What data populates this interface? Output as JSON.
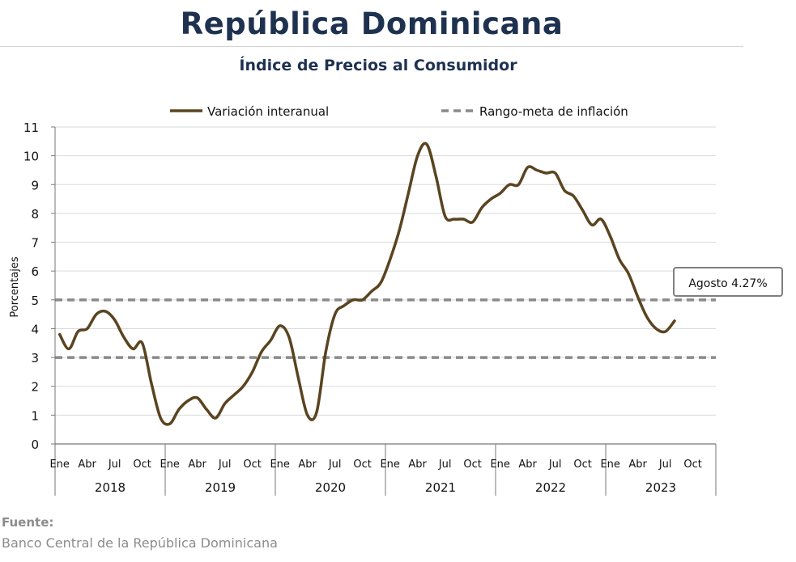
{
  "header": {
    "title": "República Dominicana",
    "subtitle": "Índice de Precios al Consumidor"
  },
  "footer": {
    "label": "Fuente:",
    "source": "Banco Central de la República Dominicana"
  },
  "colors": {
    "title": "#1e3250",
    "series_line": "#5a4420",
    "target_band": "#8a8a8a",
    "grid": "#d9d9d9",
    "callout_border": "#7f7f7f"
  },
  "chart_data": {
    "type": "line",
    "title": "Índice de Precios al Consumidor",
    "ylabel": "Porcentajes",
    "xlabel": "",
    "ylim": [
      0,
      11
    ],
    "yticks": [
      "0",
      "1",
      "2",
      "3",
      "4",
      "5",
      "6",
      "7",
      "8",
      "9",
      "10",
      "11"
    ],
    "grid": true,
    "legend_position": "top",
    "month_tick_labels": [
      "Ene",
      "Abr",
      "Jul",
      "Oct"
    ],
    "years": [
      "2018",
      "2019",
      "2020",
      "2021",
      "2022",
      "2023"
    ],
    "series": [
      {
        "name": "Variación interanual",
        "style": "solid",
        "x": [
          "2018-01",
          "2018-02",
          "2018-03",
          "2018-04",
          "2018-05",
          "2018-06",
          "2018-07",
          "2018-08",
          "2018-09",
          "2018-10",
          "2018-11",
          "2018-12",
          "2019-01",
          "2019-02",
          "2019-03",
          "2019-04",
          "2019-05",
          "2019-06",
          "2019-07",
          "2019-08",
          "2019-09",
          "2019-10",
          "2019-11",
          "2019-12",
          "2020-01",
          "2020-02",
          "2020-03",
          "2020-04",
          "2020-05",
          "2020-06",
          "2020-07",
          "2020-08",
          "2020-09",
          "2020-10",
          "2020-11",
          "2020-12",
          "2021-01",
          "2021-02",
          "2021-03",
          "2021-04",
          "2021-05",
          "2021-06",
          "2021-07",
          "2021-08",
          "2021-09",
          "2021-10",
          "2021-11",
          "2021-12",
          "2022-01",
          "2022-02",
          "2022-03",
          "2022-04",
          "2022-05",
          "2022-06",
          "2022-07",
          "2022-08",
          "2022-09",
          "2022-10",
          "2022-11",
          "2022-12",
          "2023-01",
          "2023-02",
          "2023-03",
          "2023-04",
          "2023-05",
          "2023-06",
          "2023-07",
          "2023-08"
        ],
        "values": [
          3.8,
          3.3,
          3.9,
          4.0,
          4.5,
          4.6,
          4.3,
          3.7,
          3.3,
          3.5,
          2.1,
          0.9,
          0.7,
          1.2,
          1.5,
          1.6,
          1.2,
          0.9,
          1.4,
          1.7,
          2.0,
          2.5,
          3.2,
          3.6,
          4.1,
          3.7,
          2.3,
          1.0,
          1.1,
          3.2,
          4.5,
          4.8,
          5.0,
          5.0,
          5.3,
          5.6,
          6.4,
          7.4,
          8.7,
          10.0,
          10.4,
          9.3,
          7.9,
          7.8,
          7.8,
          7.7,
          8.2,
          8.5,
          8.7,
          9.0,
          9.0,
          9.6,
          9.5,
          9.4,
          9.4,
          8.8,
          8.6,
          8.1,
          7.6,
          7.8,
          7.2,
          6.4,
          5.9,
          5.1,
          4.4,
          4.0,
          3.9,
          4.27
        ]
      },
      {
        "name": "Rango-meta de inflación",
        "style": "dashed",
        "upper": 5,
        "lower": 3
      }
    ],
    "annotation": {
      "text": "Agosto 4.27%",
      "x": "2023-08",
      "value": 4.27
    }
  }
}
